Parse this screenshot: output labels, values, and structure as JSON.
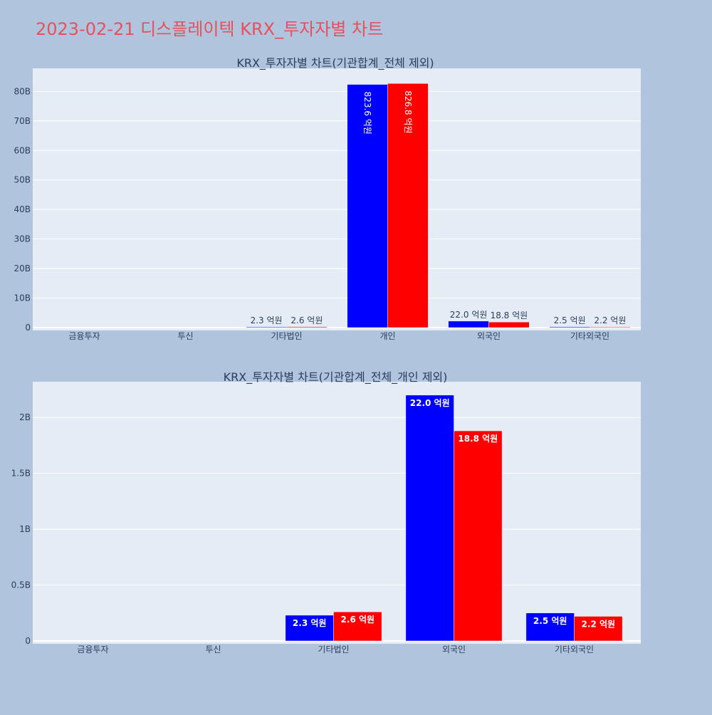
{
  "page_title": "2023-02-21 디스플레이텍 KRX_투자자별 차트",
  "colors": {
    "background": "#b0c4de",
    "plot_background": "#e5ecf6",
    "title": "#e8505b",
    "text": "#2a3f5f",
    "grid": "#ffffff",
    "buy": "#0000ff",
    "sell": "#ff0000"
  },
  "chart_data": [
    {
      "type": "bar",
      "title": "KRX_투자자별 차트(기관합계_전체 제외)",
      "categories": [
        "금융투자",
        "투신",
        "기타법인",
        "개인",
        "외국인",
        "기타외국인"
      ],
      "series": [
        {
          "color": "#0000ff",
          "values": [
            0,
            0,
            230000000,
            82360000000,
            2200000000,
            250000000
          ],
          "labels": [
            "",
            "",
            "2.3 억원",
            "823.6 억원",
            "22.0 억원",
            "2.5 억원"
          ]
        },
        {
          "color": "#ff0000",
          "values": [
            0,
            0,
            260000000,
            82680000000,
            1880000000,
            220000000
          ],
          "labels": [
            "",
            "",
            "2.6 억원",
            "826.8 억원",
            "18.8 억원",
            "2.2 억원"
          ]
        }
      ],
      "yticks": [
        0,
        10000000000,
        20000000000,
        30000000000,
        40000000000,
        50000000000,
        60000000000,
        70000000000,
        80000000000
      ],
      "ytick_labels": [
        "0",
        "10B",
        "20B",
        "30B",
        "40B",
        "50B",
        "60B",
        "70B",
        "80B"
      ],
      "ylim": [
        0,
        87800000000
      ],
      "grid": true
    },
    {
      "type": "bar",
      "title": "KRX_투자자별 차트(기관합계_전체_개인 제외)",
      "categories": [
        "금융투자",
        "투신",
        "기타법인",
        "외국인",
        "기타외국인"
      ],
      "series": [
        {
          "color": "#0000ff",
          "values": [
            0,
            0,
            230000000,
            2200000000,
            250000000
          ],
          "labels": [
            "",
            "",
            "2.3 억원",
            "22.0 억원",
            "2.5 억원"
          ]
        },
        {
          "color": "#ff0000",
          "values": [
            0,
            0,
            260000000,
            1880000000,
            220000000
          ],
          "labels": [
            "",
            "",
            "2.6 억원",
            "18.8 억원",
            "2.2 억원"
          ]
        }
      ],
      "yticks": [
        0,
        500000000,
        1000000000,
        1500000000,
        2000000000
      ],
      "ytick_labels": [
        "0",
        "0.5B",
        "1B",
        "1.5B",
        "2B"
      ],
      "ylim": [
        0,
        2320000000
      ],
      "grid": true
    }
  ]
}
